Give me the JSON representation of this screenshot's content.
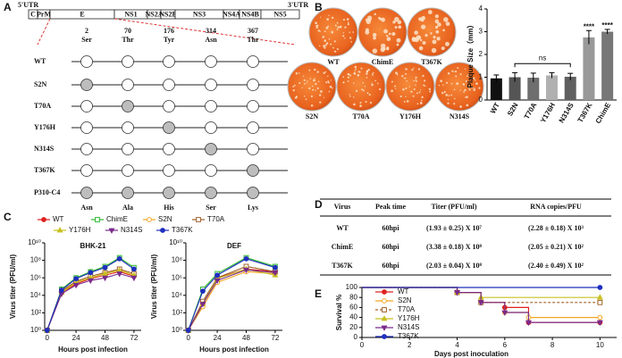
{
  "panel_labels": [
    "A",
    "B",
    "C",
    "D",
    "E"
  ],
  "genome": {
    "utr5": "5'UTR",
    "utr3": "3'UTR",
    "segments": [
      "C",
      "PrM",
      "E",
      "NS1",
      "NS2A",
      "NS2B",
      "NS3",
      "NS4A",
      "NS4B",
      "NS5"
    ]
  },
  "mutations": {
    "positions": [
      {
        "number": "2",
        "wt": "Ser",
        "mutant": "Asn"
      },
      {
        "number": "70",
        "wt": "Thr",
        "mutant": "Ala"
      },
      {
        "number": "176",
        "wt": "Tyr",
        "mutant": "His"
      },
      {
        "number": "314",
        "wt": "Asn",
        "mutant": "Ser"
      },
      {
        "number": "367",
        "wt": "Thr",
        "mutant": "Lys"
      }
    ],
    "rows": [
      {
        "label": "WT",
        "mutated": [
          false,
          false,
          false,
          false,
          false
        ]
      },
      {
        "label": "S2N",
        "mutated": [
          true,
          false,
          false,
          false,
          false
        ]
      },
      {
        "label": "T70A",
        "mutated": [
          false,
          true,
          false,
          false,
          false
        ]
      },
      {
        "label": "Y176H",
        "mutated": [
          false,
          false,
          true,
          false,
          false
        ]
      },
      {
        "label": "N314S",
        "mutated": [
          false,
          false,
          false,
          true,
          false
        ]
      },
      {
        "label": "T367K",
        "mutated": [
          false,
          false,
          false,
          false,
          true
        ]
      },
      {
        "label": "P310-C4",
        "mutated": [
          true,
          true,
          true,
          true,
          true
        ]
      }
    ]
  },
  "plates": [
    "WT",
    "ChimE",
    "T367K",
    "S2N",
    "T70A",
    "Y176H",
    "N314S"
  ],
  "chart_data": [
    {
      "type": "bar",
      "ylabel": "Plaque Size（mm）",
      "categories": [
        "WT",
        "S2N",
        "T70A",
        "Y176H",
        "N314S",
        "T367K",
        "ChimE"
      ],
      "values": [
        0.95,
        1.0,
        0.98,
        1.08,
        1.02,
        2.75,
        3.0
      ],
      "errors": [
        0.15,
        0.2,
        0.2,
        0.12,
        0.15,
        0.3,
        0.1
      ],
      "colors": [
        "#111111",
        "#555555",
        "#6e6e6e",
        "#b0b0b0",
        "#606060",
        "#999999",
        "#777777"
      ],
      "ylim": [
        0,
        4
      ],
      "yticks": [
        0,
        1,
        2,
        3,
        4
      ],
      "annotations": [
        {
          "text": "ns"
        },
        {
          "text": "****"
        },
        {
          "text": "****"
        }
      ]
    },
    {
      "type": "line",
      "ylabel": "Virus titer (PFU/ml)",
      "xlabel": "Hours post infection",
      "log_y": true,
      "ylim": [
        1,
        10000000000
      ],
      "yticks": [
        {
          "value": 1,
          "label": "10⁰"
        },
        {
          "value": 100,
          "label": "10²"
        },
        {
          "value": 10000,
          "label": "10⁴"
        },
        {
          "value": 1000000,
          "label": "10⁶"
        },
        {
          "value": 100000000,
          "label": "10⁸"
        },
        {
          "value": 10000000000,
          "label": "10¹⁰"
        }
      ],
      "xlim": [
        -2,
        78
      ],
      "xticks": [
        0,
        24,
        48,
        72
      ],
      "series": [
        {
          "name": "WT",
          "color": "#e02020",
          "marker": "circle"
        },
        {
          "name": "ChimE",
          "color": "#2eb82e",
          "marker": "square-open"
        },
        {
          "name": "S2N",
          "color": "#f5a623",
          "marker": "circle-open"
        },
        {
          "name": "T70A",
          "color": "#a0612a",
          "marker": "square-open"
        },
        {
          "name": "Y176H",
          "color": "#c8c020",
          "marker": "triangle"
        },
        {
          "name": "N314S",
          "color": "#7a2a8a",
          "marker": "triangle-down"
        },
        {
          "name": "T367K",
          "color": "#1f2fbf",
          "marker": "circle"
        }
      ],
      "panels": [
        {
          "title": "BHK-21",
          "x": [
            0,
            12,
            24,
            36,
            48,
            60,
            72
          ],
          "values": [
            [
              1,
              20000,
              200000,
              800000,
              2000000,
              5000000,
              1500000
            ],
            [
              1,
              50000,
              1000000,
              5000000,
              20000000,
              200000000,
              15000000
            ],
            [
              1,
              30000,
              300000,
              1000000,
              3000000,
              8000000,
              2000000
            ],
            [
              1,
              30000,
              400000,
              1500000,
              4000000,
              10000000,
              3000000
            ],
            [
              1,
              20000,
              300000,
              1000000,
              3000000,
              7000000,
              2000000
            ],
            [
              1,
              15000,
              150000,
              500000,
              1000000,
              3000000,
              1000000
            ],
            [
              1,
              40000,
              800000,
              4000000,
              15000000,
              150000000,
              10000000
            ]
          ]
        },
        {
          "title": "DEF",
          "x": [
            0,
            12,
            24,
            48,
            72
          ],
          "values": [
            [
              1,
              1000,
              1000000,
              10000000,
              5000000
            ],
            [
              1,
              50000,
              3000000,
              200000000,
              20000000
            ],
            [
              1,
              500,
              300000,
              5000000,
              3000000
            ],
            [
              1,
              2000,
              1000000,
              20000000,
              5000000
            ],
            [
              1,
              1000,
              800000,
              10000000,
              2000000
            ],
            [
              1,
              1000,
              500000,
              8000000,
              4000000
            ],
            [
              1,
              30000,
              2000000,
              150000000,
              15000000
            ]
          ]
        }
      ]
    },
    {
      "type": "step",
      "ylabel": "Survival %",
      "xlabel": "Days post inoculation",
      "xlim": [
        0,
        10.7
      ],
      "xticks": [
        0,
        2,
        4,
        6,
        8,
        10
      ],
      "ylim": [
        0,
        100
      ],
      "yticks": [
        0,
        20,
        40,
        60,
        80,
        100
      ],
      "series": [
        {
          "name": "WT",
          "color": "#e02020",
          "marker": "circle",
          "x": [
            0,
            4,
            5,
            6,
            7,
            10
          ],
          "values": [
            100,
            90,
            70,
            60,
            30,
            30
          ]
        },
        {
          "name": "S2N",
          "color": "#f5a623",
          "marker": "circle-open",
          "x": [
            0,
            4,
            5,
            6,
            7,
            10
          ],
          "values": [
            100,
            90,
            70,
            50,
            40,
            40
          ]
        },
        {
          "name": "T70A",
          "color": "#a0612a",
          "marker": "square-open",
          "dashed": true,
          "x": [
            0,
            4,
            5,
            10
          ],
          "values": [
            100,
            90,
            70,
            70
          ]
        },
        {
          "name": "Y176H",
          "color": "#c8c020",
          "marker": "triangle",
          "x": [
            0,
            4,
            5,
            10
          ],
          "values": [
            100,
            90,
            80,
            80
          ]
        },
        {
          "name": "N314S",
          "color": "#7a2a8a",
          "marker": "triangle-down",
          "x": [
            0,
            4,
            5,
            6,
            7,
            10
          ],
          "values": [
            100,
            90,
            70,
            50,
            30,
            30
          ]
        },
        {
          "name": "T367K",
          "color": "#1f2fbf",
          "marker": "circle",
          "x": [
            0,
            10
          ],
          "values": [
            100,
            100
          ]
        }
      ]
    }
  ],
  "table": {
    "header": [
      "Virus",
      "Peak time",
      "Titer (PFU/ml)",
      "RNA copies/PFU"
    ],
    "rows": [
      [
        "WT",
        "60hpi",
        "(1.93 ± 0.25) X 10⁷",
        "(2.28 ± 0.18) X 10³"
      ],
      [
        "ChimE",
        "60hpi",
        "(3.38 ± 0.18) X 10⁸",
        "(2.05 ± 0.21) X 10²"
      ],
      [
        "T367K",
        "60hpi",
        "(2.03 ± 0.04) X 10⁸",
        "(2.40 ± 0.49) X 10²"
      ]
    ]
  }
}
